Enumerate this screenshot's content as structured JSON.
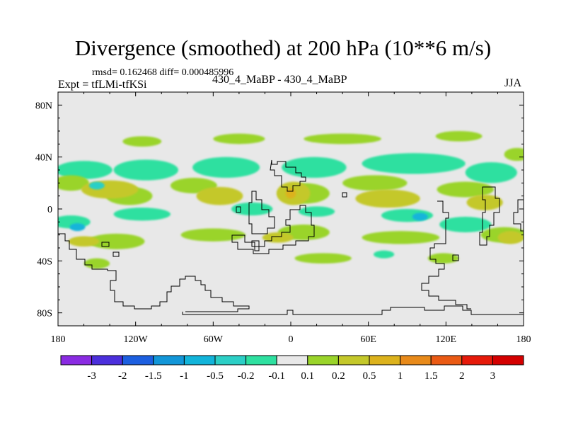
{
  "chart_data": {
    "type": "heatmap",
    "title": "Divergence (smoothed) at 200 hPa (10**6 m/s)",
    "stats_line": "rmsd= 0.162468 diff= 0.000485996",
    "experiment_line": "Expt = tfLMi-tfKSi",
    "comparison_line": "430_4_MaBP - 430_4_MaBP",
    "season": "JJA",
    "units": "10**6 m/s",
    "xlim": [
      -180,
      180
    ],
    "ylim": [
      -90,
      90
    ],
    "x_ticks": [
      {
        "value": -180,
        "label": "180"
      },
      {
        "value": -120,
        "label": "120W"
      },
      {
        "value": -60,
        "label": "60W"
      },
      {
        "value": 0,
        "label": "0"
      },
      {
        "value": 60,
        "label": "60E"
      },
      {
        "value": 120,
        "label": "120E"
      },
      {
        "value": 180,
        "label": "180"
      }
    ],
    "y_ticks": [
      {
        "value": 80,
        "label": "80N"
      },
      {
        "value": 40,
        "label": "40N"
      },
      {
        "value": 0,
        "label": "0"
      },
      {
        "value": -40,
        "label": "40S"
      },
      {
        "value": -80,
        "label": "80S"
      }
    ],
    "colorbar": {
      "levels": [
        "-3",
        "-2",
        "-1.5",
        "-1",
        "-0.5",
        "-0.2",
        "-0.1",
        "0.1",
        "0.2",
        "0.5",
        "1",
        "1.5",
        "2",
        "3"
      ],
      "colors": [
        "#8a2be2",
        "#4b2fdc",
        "#1c5fe0",
        "#1296d8",
        "#12b4da",
        "#2ccfc6",
        "#2ee0a0",
        "#e8e8e8",
        "#9ad42a",
        "#c4c82a",
        "#dcb21c",
        "#e88a1a",
        "#ea5a14",
        "#e61a0a",
        "#d40000"
      ]
    },
    "features": [
      {
        "name": "cyan-band-north-pacific-west",
        "lon": -160,
        "lat": 30,
        "dlon": 22,
        "dlat": 7,
        "level": 6
      },
      {
        "name": "cyan-band-north-pacific-east",
        "lon": -112,
        "lat": 30,
        "dlon": 25,
        "dlat": 8,
        "level": 6
      },
      {
        "name": "cyan-band-north-atlantic",
        "lon": -50,
        "lat": 32,
        "dlon": 26,
        "dlat": 8,
        "level": 6
      },
      {
        "name": "cyan-band-europe",
        "lon": 18,
        "lat": 32,
        "dlon": 25,
        "dlat": 8,
        "level": 6
      },
      {
        "name": "cyan-band-asia",
        "lon": 95,
        "lat": 35,
        "dlon": 40,
        "dlat": 8,
        "level": 6
      },
      {
        "name": "cyan-band-west-pacific",
        "lon": 155,
        "lat": 28,
        "dlon": 20,
        "dlat": 8,
        "level": 6
      },
      {
        "name": "green-band-55n-a",
        "lon": -115,
        "lat": 52,
        "dlon": 15,
        "dlat": 4,
        "level": 8
      },
      {
        "name": "green-band-55n-b",
        "lon": -40,
        "lat": 54,
        "dlon": 20,
        "dlat": 4,
        "level": 8
      },
      {
        "name": "green-band-55n-c",
        "lon": 40,
        "lat": 54,
        "dlon": 30,
        "dlat": 4,
        "level": 8
      },
      {
        "name": "green-band-55n-d",
        "lon": 130,
        "lat": 56,
        "dlon": 18,
        "dlat": 4,
        "level": 8
      },
      {
        "name": "green-band-55n-e",
        "lon": 175,
        "lat": 42,
        "dlon": 10,
        "dlat": 5,
        "level": 8
      },
      {
        "name": "green-band-20n-a",
        "lon": -170,
        "lat": 20,
        "dlon": 14,
        "dlat": 6,
        "level": 8
      },
      {
        "name": "green-band-20n-b",
        "lon": -125,
        "lat": 10,
        "dlon": 18,
        "dlat": 7,
        "level": 8
      },
      {
        "name": "green-band-20n-c",
        "lon": -75,
        "lat": 18,
        "dlon": 18,
        "dlat": 6,
        "level": 8
      },
      {
        "name": "green-band-20n-d",
        "lon": 10,
        "lat": 12,
        "dlon": 20,
        "dlat": 8,
        "level": 8
      },
      {
        "name": "green-band-20n-e",
        "lon": 65,
        "lat": 20,
        "dlon": 25,
        "dlat": 6,
        "level": 8
      },
      {
        "name": "green-band-20n-f",
        "lon": 135,
        "lat": 15,
        "dlon": 22,
        "dlat": 6,
        "level": 8
      },
      {
        "name": "yellow-olive-pacific-north",
        "lon": -140,
        "lat": 15,
        "dlon": 22,
        "dlat": 7,
        "level": 9
      },
      {
        "name": "yellow-olive-mid-atlantic",
        "lon": -55,
        "lat": 10,
        "dlon": 18,
        "dlat": 7,
        "level": 9
      },
      {
        "name": "yellow-olive-africa",
        "lon": 2,
        "lat": 12,
        "dlon": 13,
        "dlat": 9,
        "level": 9
      },
      {
        "name": "yellow-olive-indian",
        "lon": 75,
        "lat": 8,
        "dlon": 25,
        "dlat": 7,
        "level": 9
      },
      {
        "name": "yellow-olive-west-pacific",
        "lon": 150,
        "lat": 5,
        "dlon": 14,
        "dlat": 6,
        "level": 9
      },
      {
        "name": "orange-core-africa",
        "lon": 0,
        "lat": 12,
        "dlon": 4,
        "dlat": 4,
        "level": 10
      },
      {
        "name": "cyan-equatorial-west",
        "lon": -170,
        "lat": -10,
        "dlon": 15,
        "dlat": 5,
        "level": 6
      },
      {
        "name": "cyan-equatorial-pacific",
        "lon": -115,
        "lat": -4,
        "dlon": 22,
        "dlat": 5,
        "level": 6
      },
      {
        "name": "cyan-equatorial-atlantic",
        "lon": -30,
        "lat": 0,
        "dlon": 16,
        "dlat": 5,
        "level": 6
      },
      {
        "name": "cyan-equatorial-africa",
        "lon": 20,
        "lat": -2,
        "dlon": 14,
        "dlat": 4,
        "level": 6
      },
      {
        "name": "cyan-equatorial-indian",
        "lon": 90,
        "lat": -5,
        "dlon": 20,
        "dlat": 5,
        "level": 6
      },
      {
        "name": "cyan-equatorial-maritime",
        "lon": 135,
        "lat": -12,
        "dlon": 20,
        "dlat": 6,
        "level": 6
      },
      {
        "name": "blue-core-west-pacific",
        "lon": -165,
        "lat": -14,
        "dlon": 6,
        "dlat": 3,
        "level": 4
      },
      {
        "name": "blue-core-north-pacific",
        "lon": -150,
        "lat": 18,
        "dlon": 6,
        "dlat": 3,
        "level": 5
      },
      {
        "name": "blue-core-indian",
        "lon": 100,
        "lat": -6,
        "dlon": 6,
        "dlat": 3,
        "level": 4
      },
      {
        "name": "green-southern-a",
        "lon": -135,
        "lat": -25,
        "dlon": 22,
        "dlat": 6,
        "level": 8
      },
      {
        "name": "green-southern-b",
        "lon": -60,
        "lat": -20,
        "dlon": 25,
        "dlat": 5,
        "level": 8
      },
      {
        "name": "green-southern-c",
        "lon": 10,
        "lat": -18,
        "dlon": 20,
        "dlat": 6,
        "level": 8
      },
      {
        "name": "green-southern-d",
        "lon": 85,
        "lat": -22,
        "dlon": 30,
        "dlat": 5,
        "level": 8
      },
      {
        "name": "green-southern-e",
        "lon": 165,
        "lat": -20,
        "dlon": 18,
        "dlat": 6,
        "level": 8
      },
      {
        "name": "olive-southern-a",
        "lon": -160,
        "lat": -25,
        "dlon": 12,
        "dlat": 4,
        "level": 9
      },
      {
        "name": "olive-southern-b",
        "lon": -10,
        "lat": -22,
        "dlon": 12,
        "dlat": 4,
        "level": 9
      },
      {
        "name": "olive-southern-c",
        "lon": 170,
        "lat": -22,
        "dlon": 10,
        "dlat": 5,
        "level": 9
      },
      {
        "name": "green-far-south-a",
        "lon": -150,
        "lat": -42,
        "dlon": 10,
        "dlat": 4,
        "level": 8
      },
      {
        "name": "green-far-south-b",
        "lon": 25,
        "lat": -38,
        "dlon": 22,
        "dlat": 4,
        "level": 8
      },
      {
        "name": "green-far-south-c",
        "lon": 118,
        "lat": -38,
        "dlon": 12,
        "dlat": 4,
        "level": 8
      },
      {
        "name": "cyan-far-south",
        "lon": 72,
        "lat": -35,
        "dlon": 8,
        "dlat": 3,
        "level": 6
      }
    ]
  }
}
